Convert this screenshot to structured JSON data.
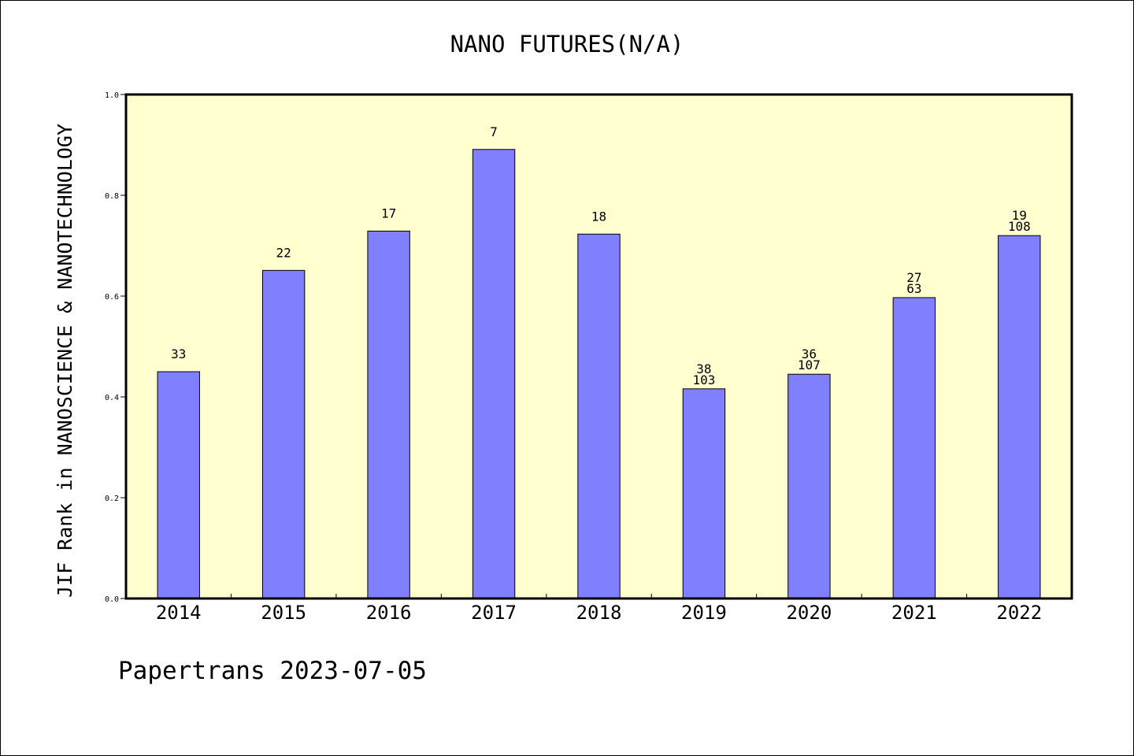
{
  "colors": {
    "plot_background": "#ffffd0",
    "bar_fill": "#8080ff",
    "bar_stroke": "#000000",
    "axis": "#000000"
  },
  "footer": {
    "text": "Papertrans 2023-07-05"
  },
  "chart_data": {
    "type": "bar",
    "title": "NANO FUTURES(N/A)",
    "xlabel": "",
    "ylabel": "JIF Rank in NANOSCIENCE & NANOTECHNOLOGY",
    "ylim": [
      0,
      1.0
    ],
    "yticks": [
      "0.0",
      "0.2",
      "0.4",
      "0.6",
      "0.8",
      "1.0"
    ],
    "grid": false,
    "legend": "none",
    "categories": [
      "2014",
      "2015",
      "2016",
      "2017",
      "2018",
      "2019",
      "2020",
      "2021",
      "2022"
    ],
    "values": [
      0.45,
      0.651,
      0.729,
      0.891,
      0.723,
      0.416,
      0.445,
      0.597,
      0.72
    ],
    "labels": [
      [
        "33"
      ],
      [
        "22"
      ],
      [
        "17"
      ],
      [
        "7"
      ],
      [
        "18"
      ],
      [
        "38",
        "103"
      ],
      [
        "36",
        "107"
      ],
      [
        "27",
        "63"
      ],
      [
        "19",
        "108"
      ]
    ]
  }
}
